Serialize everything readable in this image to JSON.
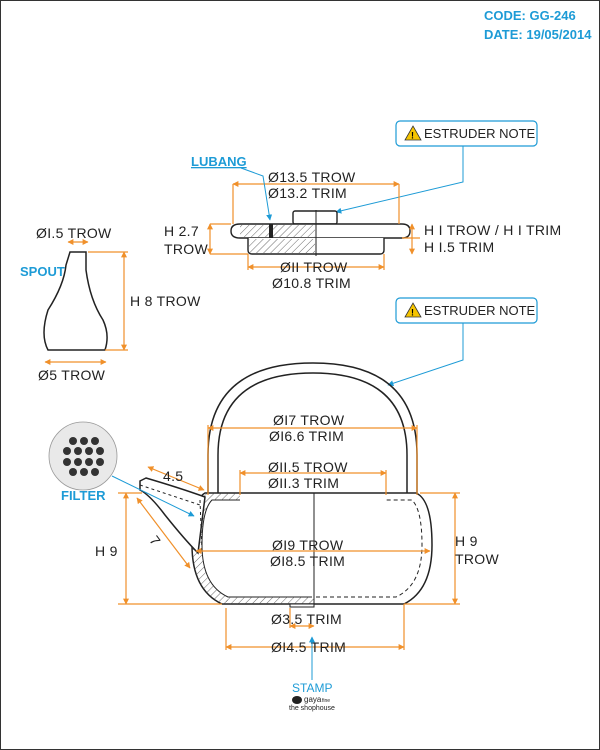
{
  "header": {
    "code": "CODE: GG-246",
    "date": "DATE: 19/05/2014"
  },
  "notes": {
    "top": "ESTRUDER NOTE",
    "handle": "ESTRUDER NOTE"
  },
  "callouts": {
    "lubang": "LUBANG",
    "spout": "SPOUT",
    "filter": "FILTER",
    "stamp": "STAMP"
  },
  "lid": {
    "d_top_trow": "Ø13.5 TROW",
    "d_top_trim": "Ø13.2 TRIM",
    "h_label": "H 2.7",
    "h_label2": "TROW",
    "right_top": "H I TROW / H I TRIM",
    "right_bottom": "H I.5 TRIM",
    "d_bot_trow": "ØII TROW",
    "d_bot_trim": "Ø10.8 TRIM"
  },
  "spout": {
    "d_top": "ØI.5 TROW",
    "height": "H 8 TROW",
    "d_bottom": "Ø5 TROW"
  },
  "body": {
    "handle_trow": "ØI7 TROW",
    "handle_trim": "ØI6.6 TRIM",
    "opening_trow": "ØII.5 TROW",
    "opening_trim": "ØII.3 TRIM",
    "belly_trow": "ØI9 TROW",
    "belly_trim": "ØI8.5 TRIM",
    "left_height": "H 9",
    "right_height": "H 9",
    "right_height2": "TROW",
    "spout_len_a": "4.5",
    "spout_len_b": "7",
    "foot_trim": "Ø3.5 TRIM",
    "base_trim": "ØI4.5 TRIM"
  },
  "stamp": {
    "brand": "gaya",
    "sub": "the shophouse",
    "tag": "fine"
  }
}
